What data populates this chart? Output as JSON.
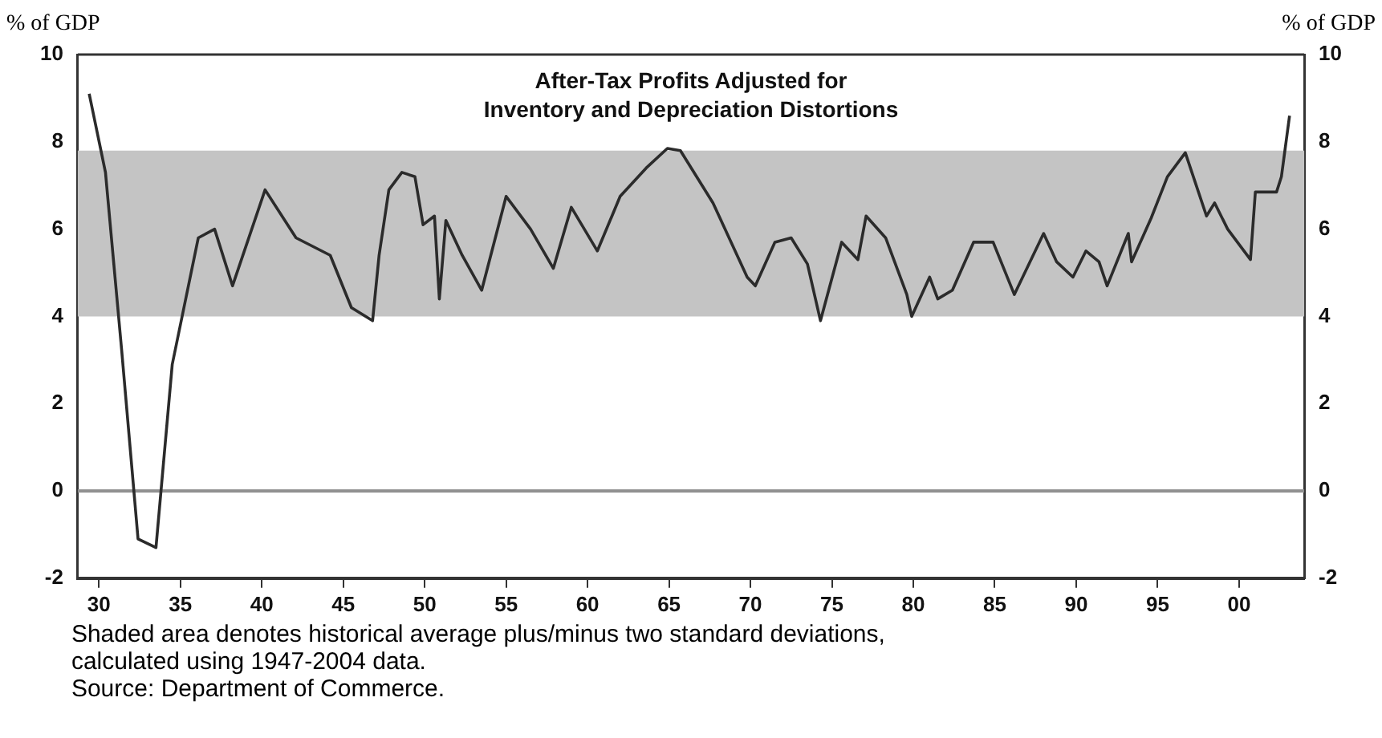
{
  "chart_data": {
    "type": "line",
    "title": "After-Tax Profits Adjusted for\nInventory and Depreciation Distortions",
    "ylabel": "% of GDP",
    "y2label": "% of GDP",
    "annotations": [
      "Shaded area denotes historical average plus/minus two standard deviations,\ncalculated using 1947-2004 data.",
      "Source: Department of Commerce."
    ],
    "x": [
      1929.4,
      1930.4,
      1931.4,
      1932.4,
      1933.5,
      1934.5,
      1936.1,
      1937.1,
      1938.2,
      1940.2,
      1942.1,
      1944.2,
      1945.5,
      1946.8,
      1947.2,
      1947.8,
      1948.6,
      1949.4,
      1949.9,
      1950.6,
      1950.9,
      1951.3,
      1952.3,
      1953.5,
      1955.0,
      1956.5,
      1957.9,
      1959.0,
      1960.6,
      1962.0,
      1963.6,
      1964.9,
      1965.7,
      1967.7,
      1969.8,
      1970.3,
      1971.5,
      1972.5,
      1973.5,
      1974.3,
      1975.6,
      1976.6,
      1977.1,
      1978.3,
      1979.6,
      1979.9,
      1981.0,
      1981.5,
      1982.4,
      1983.7,
      1984.9,
      1986.2,
      1988.0,
      1988.8,
      1989.8,
      1990.6,
      1991.4,
      1991.9,
      1993.2,
      1993.4,
      1994.6,
      1995.6,
      1996.7,
      1998.0,
      1998.5,
      1999.3,
      2000.7,
      2001.0,
      2002.3,
      2002.6,
      2003.1
    ],
    "values": [
      9.1,
      7.3,
      3.2,
      -1.1,
      -1.3,
      2.9,
      5.8,
      6.0,
      4.7,
      6.9,
      5.8,
      5.4,
      4.2,
      3.9,
      5.4,
      6.9,
      7.3,
      7.2,
      6.1,
      6.3,
      4.4,
      6.2,
      5.4,
      4.6,
      6.75,
      6.0,
      5.1,
      6.5,
      5.5,
      6.75,
      7.4,
      7.85,
      7.8,
      6.6,
      4.9,
      4.7,
      5.7,
      5.8,
      5.2,
      3.9,
      5.7,
      5.3,
      6.3,
      5.8,
      4.5,
      4.0,
      4.9,
      4.4,
      4.6,
      5.7,
      5.7,
      4.5,
      5.9,
      5.25,
      4.9,
      5.5,
      5.25,
      4.7,
      5.9,
      5.25,
      6.25,
      7.2,
      7.75,
      6.3,
      6.6,
      6.0,
      5.3,
      6.85,
      6.85,
      7.2,
      8.6
    ],
    "color": "#2b2b2b",
    "xlim": [
      1928.7,
      2004
    ],
    "xticks": [
      {
        "value": 1930,
        "label": "30"
      },
      {
        "value": 1935,
        "label": "35"
      },
      {
        "value": 1940,
        "label": "40"
      },
      {
        "value": 1945,
        "label": "45"
      },
      {
        "value": 1950,
        "label": "50"
      },
      {
        "value": 1955,
        "label": "55"
      },
      {
        "value": 1960,
        "label": "60"
      },
      {
        "value": 1965,
        "label": "65"
      },
      {
        "value": 1970,
        "label": "70"
      },
      {
        "value": 1975,
        "label": "75"
      },
      {
        "value": 1980,
        "label": "80"
      },
      {
        "value": 1985,
        "label": "85"
      },
      {
        "value": 1990,
        "label": "90"
      },
      {
        "value": 1995,
        "label": "95"
      },
      {
        "value": 2000,
        "label": "00"
      }
    ],
    "ylim": [
      -2,
      10
    ],
    "yticks": [
      -2,
      0,
      2,
      4,
      6,
      8,
      10
    ],
    "y2lim": [
      -2,
      10
    ],
    "y2ticks": [
      -2,
      0,
      2,
      4,
      6,
      8,
      10
    ],
    "bands": [
      {
        "axis": "y",
        "from": 4.0,
        "to": 7.8,
        "label": null,
        "color": "#c4c4c4"
      }
    ],
    "ref_lines": [
      {
        "axis": "y",
        "value": 0,
        "label": null,
        "color": "#909090"
      }
    ],
    "grid": false,
    "legend": false,
    "marker": "none",
    "line_style": "solid"
  }
}
